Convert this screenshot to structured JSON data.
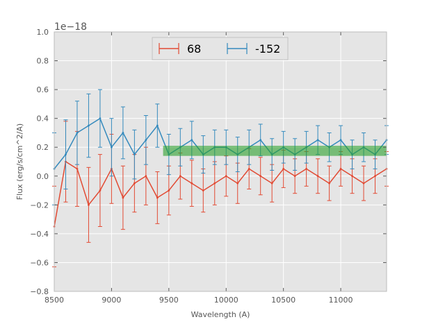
{
  "chart_data": {
    "type": "line",
    "title": "",
    "xlabel": "Wavelength (A)",
    "ylabel": "Flux (erg/s/cm^2/A)",
    "y_offset_label": "1e−18",
    "xlim": [
      8500,
      11400
    ],
    "ylim": [
      -0.8,
      1.0
    ],
    "xticks": [
      8500,
      9000,
      9500,
      10000,
      10500,
      11000
    ],
    "xtick_labels": [
      "8500",
      "9000",
      "9500",
      "10000",
      "10500",
      "11000"
    ],
    "yticks": [
      -0.8,
      -0.6,
      -0.4,
      -0.2,
      0.0,
      0.2,
      0.4,
      0.6,
      0.8,
      1.0
    ],
    "ytick_labels": [
      "−0.8",
      "−0.6",
      "−0.4",
      "−0.2",
      "0.0",
      "0.2",
      "0.4",
      "0.6",
      "0.8",
      "1.0"
    ],
    "grid": true,
    "legend_position": "top-center",
    "band": {
      "x_start": 9450,
      "x_end": 11400,
      "y_low": 0.14,
      "y_high": 0.21,
      "color": "#2ca02c"
    },
    "series": [
      {
        "name": "68",
        "color": "#e24a33",
        "x": [
          8500,
          8600,
          8700,
          8800,
          8900,
          9000,
          9100,
          9200,
          9300,
          9400,
          9500,
          9600,
          9700,
          9800,
          9900,
          10000,
          10100,
          10200,
          10300,
          10400,
          10500,
          10600,
          10700,
          10800,
          10900,
          11000,
          11100,
          11200,
          11300,
          11400
        ],
        "values": [
          -0.35,
          0.1,
          0.05,
          -0.2,
          -0.1,
          0.05,
          -0.15,
          -0.05,
          0.0,
          -0.15,
          -0.1,
          0.0,
          -0.05,
          -0.1,
          -0.05,
          0.0,
          -0.05,
          0.05,
          0.0,
          -0.05,
          0.05,
          0.0,
          0.05,
          0.0,
          -0.05,
          0.05,
          0.0,
          -0.05,
          0.0,
          0.05
        ],
        "errors": [
          0.28,
          0.28,
          0.26,
          0.26,
          0.25,
          0.24,
          0.22,
          0.2,
          0.2,
          0.18,
          0.17,
          0.16,
          0.16,
          0.15,
          0.15,
          0.14,
          0.14,
          0.14,
          0.13,
          0.13,
          0.13,
          0.12,
          0.12,
          0.12,
          0.12,
          0.12,
          0.12,
          0.12,
          0.12,
          0.12
        ]
      },
      {
        "name": "-152",
        "color": "#348abd",
        "x": [
          8500,
          8600,
          8700,
          8800,
          8900,
          9000,
          9100,
          9200,
          9300,
          9400,
          9500,
          9600,
          9700,
          9800,
          9900,
          10000,
          10100,
          10200,
          10300,
          10400,
          10500,
          10600,
          10700,
          10800,
          10900,
          11000,
          11100,
          11200,
          11300,
          11400
        ],
        "values": [
          0.05,
          0.15,
          0.3,
          0.35,
          0.4,
          0.2,
          0.3,
          0.15,
          0.25,
          0.35,
          0.15,
          0.2,
          0.25,
          0.15,
          0.2,
          0.2,
          0.15,
          0.2,
          0.25,
          0.15,
          0.2,
          0.15,
          0.2,
          0.25,
          0.2,
          0.25,
          0.15,
          0.2,
          0.15,
          0.25
        ],
        "errors": [
          0.25,
          0.24,
          0.22,
          0.22,
          0.2,
          0.2,
          0.18,
          0.17,
          0.17,
          0.15,
          0.14,
          0.13,
          0.13,
          0.13,
          0.12,
          0.12,
          0.12,
          0.12,
          0.11,
          0.11,
          0.11,
          0.11,
          0.11,
          0.1,
          0.1,
          0.1,
          0.1,
          0.1,
          0.1,
          0.1
        ]
      }
    ]
  }
}
